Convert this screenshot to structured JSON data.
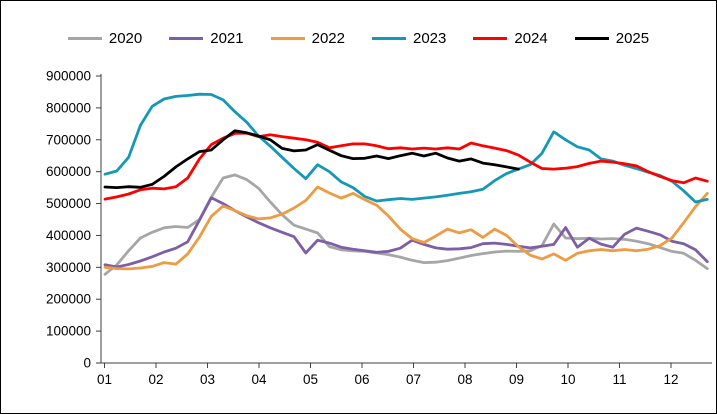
{
  "chart_data": {
    "type": "line",
    "title": "",
    "legend_position": "top",
    "grid": false,
    "x_axis": {
      "tick_labels": [
        "01",
        "02",
        "03",
        "04",
        "05",
        "06",
        "07",
        "08",
        "09",
        "10",
        "11",
        "12"
      ],
      "unit": "month",
      "note": "weekly data points across one year"
    },
    "y_axis": {
      "min": 0,
      "max": 900000,
      "tick_step": 100000,
      "tick_labels": [
        "0",
        "100000",
        "200000",
        "300000",
        "400000",
        "500000",
        "600000",
        "700000",
        "800000",
        "900000"
      ]
    },
    "axis_color": "#3f3f3f",
    "series": [
      {
        "name": "2020",
        "color": "#a6a6a6",
        "values": [
          278000,
          308000,
          352000,
          392000,
          410000,
          424000,
          428000,
          425000,
          450000,
          520000,
          580000,
          590000,
          575000,
          548000,
          505000,
          465000,
          432000,
          420000,
          408000,
          365000,
          355000,
          352000,
          350000,
          345000,
          340000,
          332000,
          322000,
          315000,
          316000,
          321000,
          329000,
          337000,
          343000,
          348000,
          351000,
          350000,
          352000,
          368000,
          436000,
          392000,
          390000,
          391000,
          389000,
          390000,
          388000,
          382000,
          374000,
          362000,
          350000,
          344000,
          322000,
          296000
        ]
      },
      {
        "name": "2021",
        "color": "#7d5fa7",
        "values": [
          308000,
          301000,
          309000,
          320000,
          333000,
          348000,
          360000,
          380000,
          448000,
          518000,
          500000,
          478000,
          458000,
          440000,
          424000,
          410000,
          396000,
          345000,
          385000,
          376000,
          363000,
          357000,
          352000,
          347000,
          350000,
          360000,
          385000,
          372000,
          361000,
          357000,
          358000,
          362000,
          374000,
          376000,
          372000,
          366000,
          361000,
          366000,
          372000,
          425000,
          363000,
          391000,
          373000,
          363000,
          404000,
          423000,
          413000,
          402000,
          382000,
          374000,
          355000,
          318000
        ]
      },
      {
        "name": "2022",
        "color": "#ee9b41",
        "values": [
          300000,
          296000,
          295000,
          298000,
          303000,
          315000,
          310000,
          342000,
          395000,
          460000,
          492000,
          478000,
          462000,
          452000,
          455000,
          467000,
          486000,
          510000,
          552000,
          533000,
          517000,
          532000,
          512000,
          495000,
          461000,
          420000,
          390000,
          378000,
          398000,
          420000,
          408000,
          418000,
          394000,
          420000,
          400000,
          365000,
          338000,
          326000,
          342000,
          322000,
          344000,
          352000,
          356000,
          352000,
          356000,
          352000,
          357000,
          368000,
          392000,
          440000,
          490000,
          532000
        ]
      },
      {
        "name": "2023",
        "color": "#1598b8",
        "values": [
          592000,
          602000,
          645000,
          745000,
          805000,
          828000,
          836000,
          839000,
          843000,
          842000,
          825000,
          788000,
          755000,
          712000,
          680000,
          645000,
          610000,
          578000,
          622000,
          600000,
          568000,
          550000,
          522000,
          508000,
          512000,
          516000,
          513000,
          517000,
          521000,
          526000,
          532000,
          537000,
          545000,
          572000,
          594000,
          608000,
          622000,
          658000,
          725000,
          700000,
          678000,
          668000,
          640000,
          633000,
          620000,
          610000,
          598000,
          588000,
          570000,
          540000,
          505000,
          513000
        ]
      },
      {
        "name": "2024",
        "color": "#fe0000",
        "values": [
          514000,
          521000,
          530000,
          543000,
          548000,
          546000,
          553000,
          580000,
          640000,
          685000,
          705000,
          720000,
          721000,
          710000,
          716000,
          710000,
          705000,
          700000,
          692000,
          675000,
          681000,
          687000,
          687000,
          681000,
          672000,
          675000,
          671000,
          674000,
          671000,
          675000,
          671000,
          690000,
          681000,
          674000,
          666000,
          652000,
          630000,
          610000,
          608000,
          611000,
          616000,
          626000,
          633000,
          630000,
          625000,
          618000,
          600000,
          585000,
          572000,
          565000,
          580000,
          570000
        ]
      },
      {
        "name": "2025",
        "color": "#000000",
        "values": [
          552000,
          550000,
          553000,
          551000,
          560000,
          585000,
          615000,
          640000,
          663000,
          668000,
          700000,
          728000,
          722000,
          712000,
          700000,
          673000,
          665000,
          668000,
          685000,
          667000,
          650000,
          641000,
          642000,
          649000,
          641000,
          650000,
          658000,
          649000,
          658000,
          643000,
          633000,
          640000,
          627000,
          622000,
          615000,
          608000
        ]
      }
    ]
  }
}
